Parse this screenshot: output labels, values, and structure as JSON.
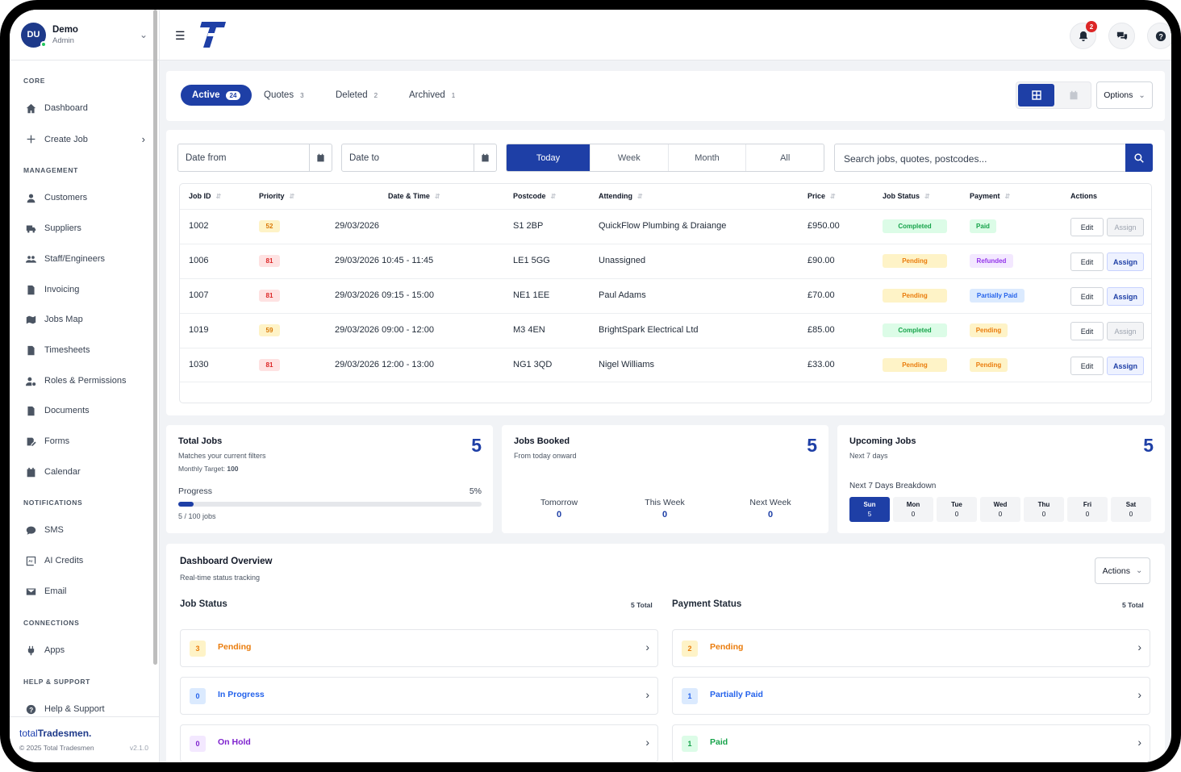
{
  "user": {
    "initials": "DU",
    "name": "Demo",
    "role": "Admin"
  },
  "sidebar": {
    "sections": {
      "core": "CORE",
      "management": "MANAGEMENT",
      "notifications": "NOTIFICATIONS",
      "connections": "CONNECTIONS",
      "help": "HELP & SUPPORT"
    },
    "items": [
      {
        "label": "Dashboard",
        "icon": "home-icon"
      },
      {
        "label": "Create Job",
        "icon": "plus-icon"
      },
      {
        "label": "Customers",
        "icon": "user-icon"
      },
      {
        "label": "Suppliers",
        "icon": "truck-icon"
      },
      {
        "label": "Staff/Engineers",
        "icon": "users-icon"
      },
      {
        "label": "Invoicing",
        "icon": "invoice-icon"
      },
      {
        "label": "Jobs Map",
        "icon": "map-icon"
      },
      {
        "label": "Timesheets",
        "icon": "file-icon"
      },
      {
        "label": "Roles & Permissions",
        "icon": "user-gear-icon"
      },
      {
        "label": "Documents",
        "icon": "document-icon"
      },
      {
        "label": "Forms",
        "icon": "form-icon"
      },
      {
        "label": "Calendar",
        "icon": "calendar-icon"
      },
      {
        "label": "SMS",
        "icon": "sms-icon"
      },
      {
        "label": "AI Credits",
        "icon": "ai-icon"
      },
      {
        "label": "Email",
        "icon": "email-icon"
      },
      {
        "label": "Apps",
        "icon": "plug-icon"
      },
      {
        "label": "Help & Support",
        "icon": "question-icon"
      }
    ],
    "footer": {
      "brand_light": "total",
      "brand_bold": "Tradesmen.",
      "copyright": "© 2025 Total Tradesmen",
      "version": "v2.1.0"
    }
  },
  "topbar": {
    "notification_count": "2"
  },
  "tabs": [
    {
      "label": "Active",
      "count": "24"
    },
    {
      "label": "Quotes",
      "count": "3"
    },
    {
      "label": "Deleted",
      "count": "2"
    },
    {
      "label": "Archived",
      "count": "1"
    }
  ],
  "options_label": "Options",
  "filters": {
    "date_from": "Date from",
    "date_to": "Date to",
    "ranges": [
      "Today",
      "Week",
      "Month",
      "All"
    ],
    "search_placeholder": "Search jobs, quotes, postcodes..."
  },
  "table": {
    "headers": [
      "Job ID",
      "Priority",
      "Date & Time",
      "Postcode",
      "Attending",
      "Price",
      "Job Status",
      "Payment",
      "Actions"
    ],
    "rows": [
      {
        "id": "1002",
        "priority": "52",
        "date": "29/03/2026",
        "postcode": "S1 2BP",
        "attending": "QuickFlow Plumbing & Draiange",
        "price": "£950.00",
        "status": "Completed",
        "payment": "Paid",
        "edit": "Edit",
        "assign": "Assign"
      },
      {
        "id": "1006",
        "priority": "81",
        "date": "29/03/2026  10:45 - 11:45",
        "postcode": "LE1 5GG",
        "attending": "Unassigned",
        "price": "£90.00",
        "status": "Pending",
        "payment": "Refunded",
        "edit": "Edit",
        "assign": "Assign"
      },
      {
        "id": "1007",
        "priority": "81",
        "date": "29/03/2026  09:15 - 15:00",
        "postcode": "NE1 1EE",
        "attending": "Paul Adams",
        "price": "£70.00",
        "status": "Pending",
        "payment": "Partially Paid",
        "edit": "Edit",
        "assign": "Assign"
      },
      {
        "id": "1019",
        "priority": "59",
        "date": "29/03/2026  09:00 - 12:00",
        "postcode": "M3 4EN",
        "attending": "BrightSpark Electrical Ltd",
        "price": "£85.00",
        "status": "Completed",
        "payment": "Pending",
        "edit": "Edit",
        "assign": "Assign"
      },
      {
        "id": "1030",
        "priority": "81",
        "date": "29/03/2026  12:00 - 13:00",
        "postcode": "NG1 3QD",
        "attending": "Nigel Williams",
        "price": "£33.00",
        "status": "Pending",
        "payment": "Pending",
        "edit": "Edit",
        "assign": "Assign"
      }
    ]
  },
  "stats": {
    "total": {
      "title": "Total Jobs",
      "value": "5",
      "subtitle": "Matches your current filters",
      "target_label": "Monthly Target:",
      "target": "100",
      "progress_label": "Progress",
      "progress_pct": "5%",
      "progress_fraction": 0.05,
      "jobs_text": "5 / 100 jobs"
    },
    "booked": {
      "title": "Jobs Booked",
      "value": "5",
      "subtitle": "From today onward",
      "cols": [
        {
          "label": "Tomorrow",
          "value": "0"
        },
        {
          "label": "This Week",
          "value": "0"
        },
        {
          "label": "Next Week",
          "value": "0"
        }
      ]
    },
    "upcoming": {
      "title": "Upcoming Jobs",
      "value": "5",
      "subtitle": "Next 7 days",
      "breakdown_label": "Next 7 Days Breakdown",
      "days": [
        {
          "d": "Sun",
          "v": "5"
        },
        {
          "d": "Mon",
          "v": "0"
        },
        {
          "d": "Tue",
          "v": "0"
        },
        {
          "d": "Wed",
          "v": "0"
        },
        {
          "d": "Thu",
          "v": "0"
        },
        {
          "d": "Fri",
          "v": "0"
        },
        {
          "d": "Sat",
          "v": "0"
        }
      ]
    }
  },
  "overview": {
    "title": "Dashboard Overview",
    "subtitle": "Real-time status tracking",
    "actions_label": "Actions",
    "job_status": {
      "title": "Job Status",
      "total": "5 Total",
      "items": [
        {
          "n": "3",
          "label": "Pending"
        },
        {
          "n": "0",
          "label": "In Progress"
        },
        {
          "n": "0",
          "label": "On Hold"
        }
      ]
    },
    "payment_status": {
      "title": "Payment Status",
      "total": "5 Total",
      "items": [
        {
          "n": "2",
          "label": "Pending"
        },
        {
          "n": "1",
          "label": "Partially Paid"
        },
        {
          "n": "1",
          "label": "Paid"
        }
      ]
    }
  },
  "colors": {
    "primary": "#1e3fa6",
    "pending": "#ea7c0c",
    "completed": "#16a34a",
    "refunded": "#9333ea",
    "partially_paid": "#2563eb",
    "in_progress": "#2563eb",
    "on_hold": "#7e22ce"
  }
}
